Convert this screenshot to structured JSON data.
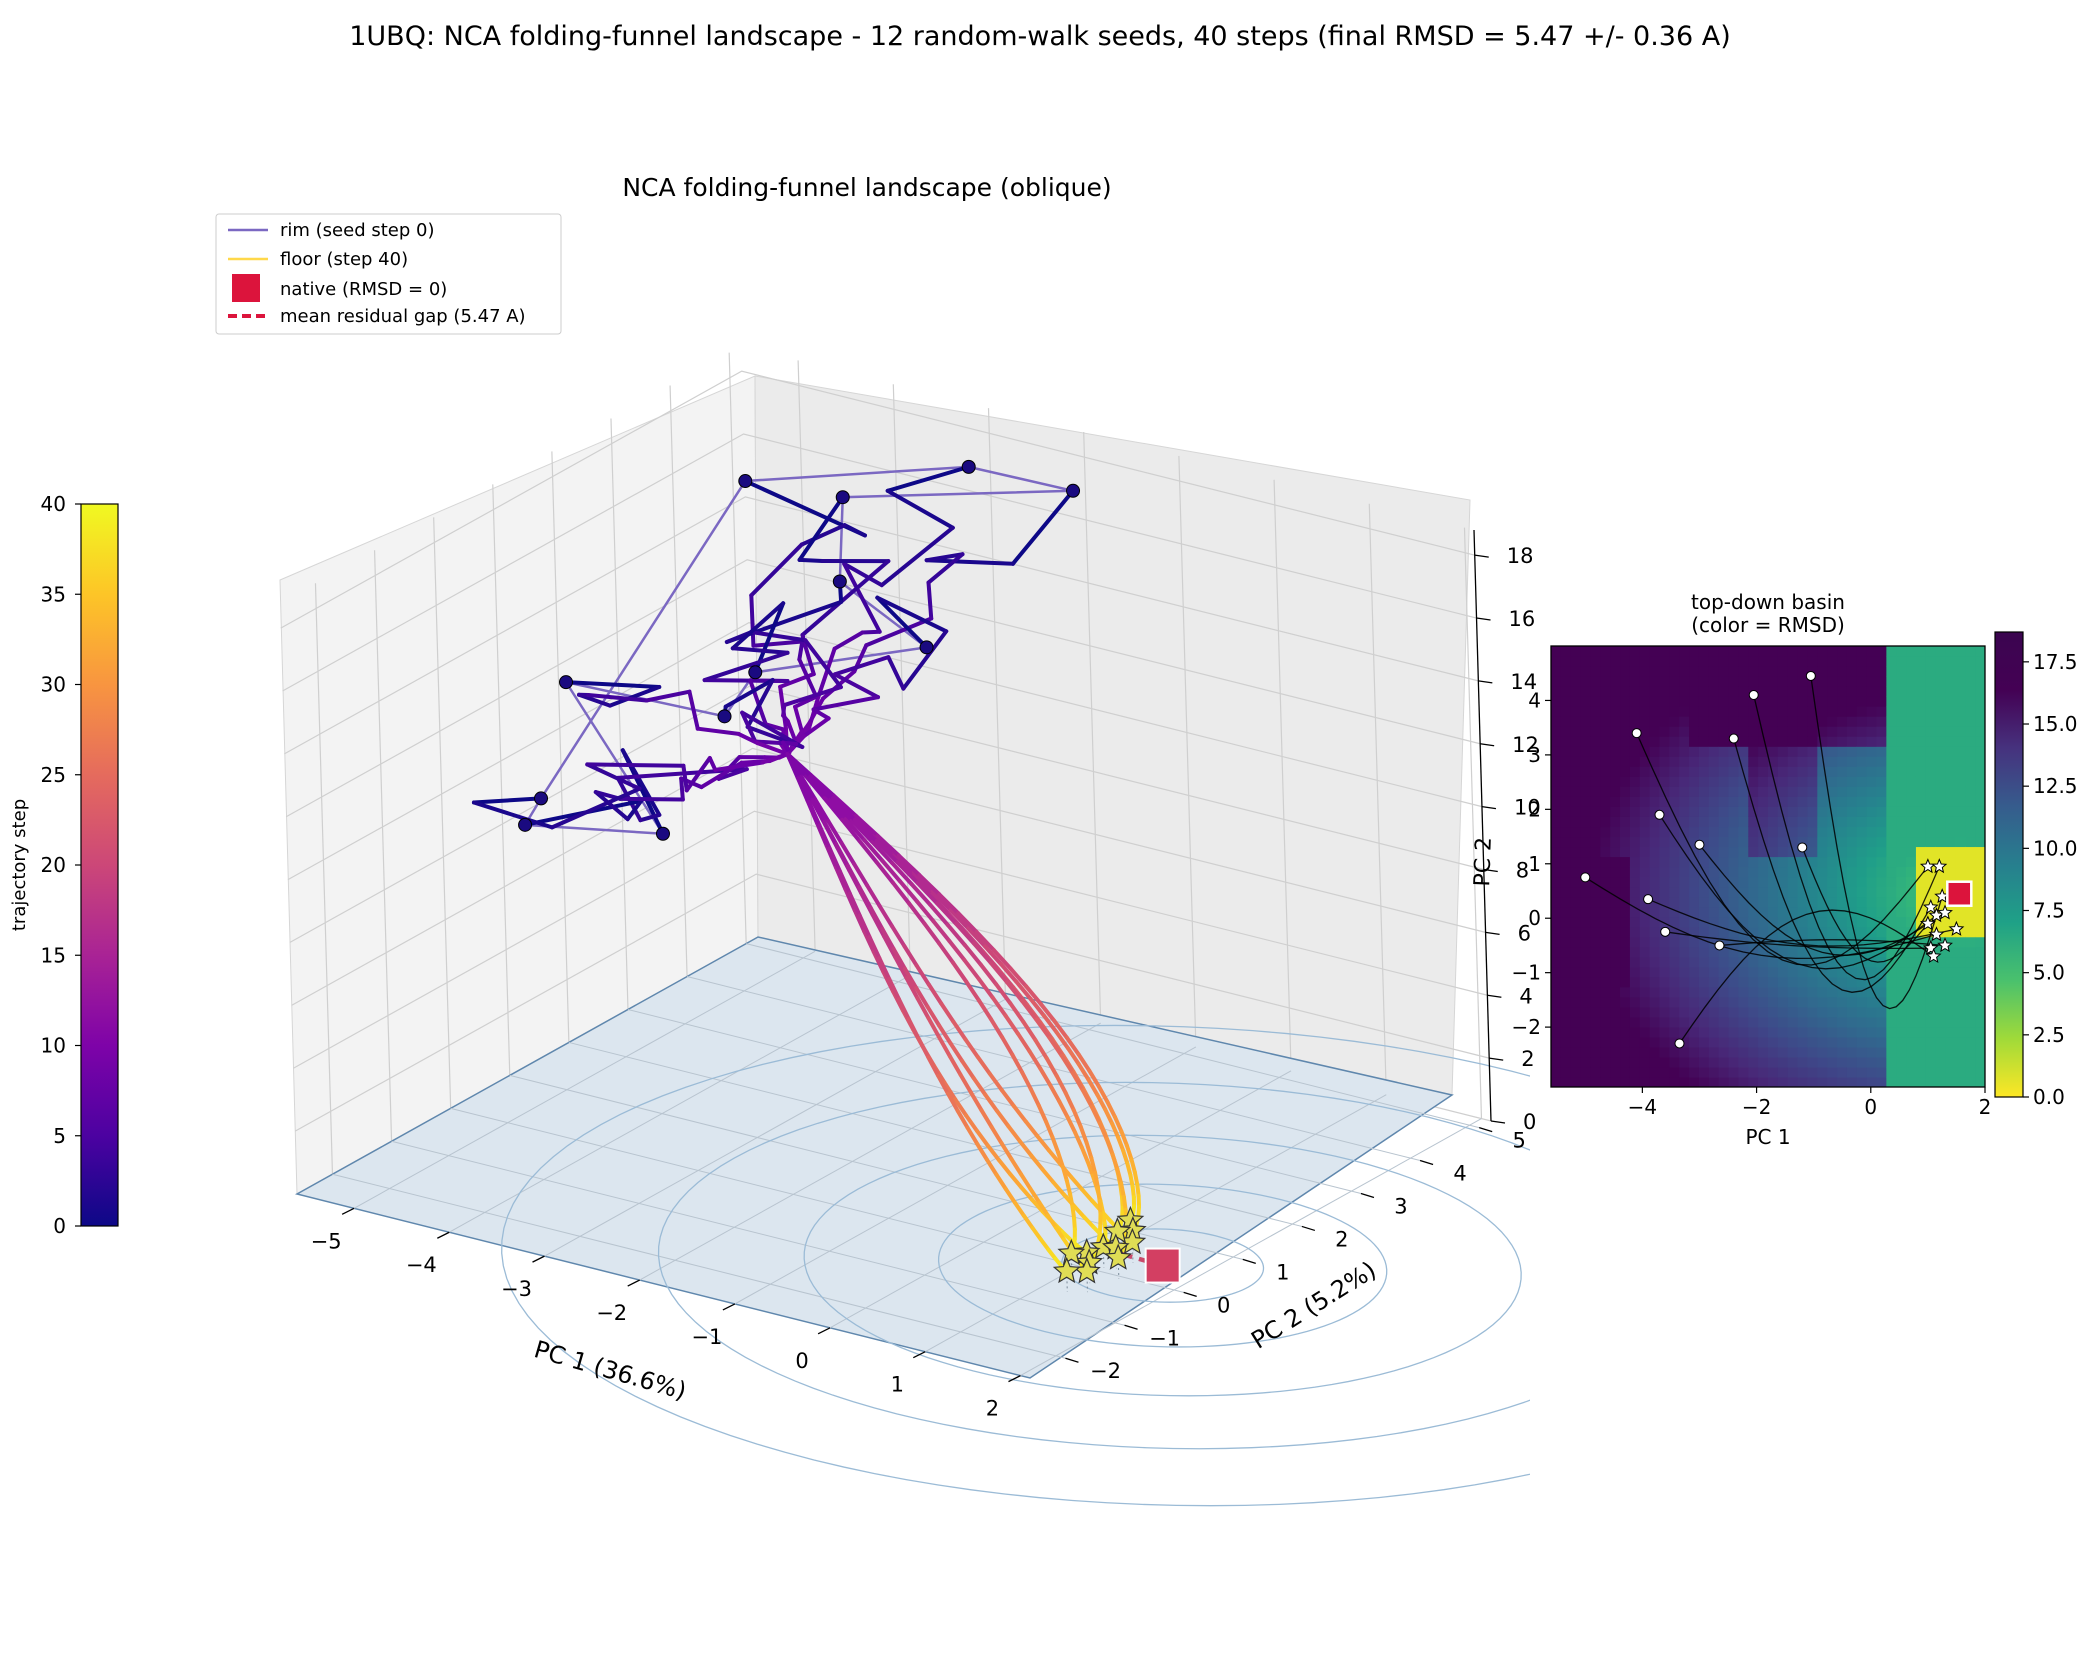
{
  "figure": {
    "suptitle": "1UBQ: NCA folding-funnel landscape  -  12 random-walk seeds, 40 steps   (final RMSD = 5.47 +/- 0.36 A)"
  },
  "colors": {
    "rim": "#7b68c2",
    "floor": "#ffd84a",
    "native": "#dc143c",
    "gap_line": "#c84a6a",
    "contours": "#9bbbd6",
    "floor_plane": "#dce6ef",
    "marker_seed": "#1a0a80",
    "star_fill": "#e0dd55"
  },
  "chart_data": [
    {
      "type": "line",
      "subtype": "3d-trajectories",
      "title": "NCA folding-funnel landscape (oblique)",
      "xlabel": "PC 1 (36.6%)",
      "ylabel": "PC 2 (5.2%)",
      "zlabel": "PC 2",
      "xlim": [
        -5.6,
        2.1
      ],
      "ylim": [
        -2.6,
        5.2
      ],
      "zlim": [
        0,
        18.8
      ],
      "xticks": [
        -5,
        -4,
        -3,
        -2,
        -1,
        0,
        1,
        2
      ],
      "yticks": [
        -2,
        -1,
        0,
        1,
        2,
        3,
        4,
        5
      ],
      "zticks": [
        0,
        2,
        4,
        6,
        8,
        10,
        12,
        14,
        16,
        18
      ],
      "grid": true,
      "legend_placement": "top-left",
      "legend": [
        {
          "label": "rim (seed step 0)",
          "kind": "line",
          "color": "#7b68c2"
        },
        {
          "label": "floor (step 40)",
          "kind": "line",
          "color": "#ffd84a"
        },
        {
          "label": "native (RMSD = 0)",
          "kind": "square",
          "color": "#dc143c"
        },
        {
          "label": "mean residual gap (5.47 A)",
          "kind": "dashed",
          "color": "#dc143c"
        }
      ],
      "colorbar": {
        "label": "trajectory step",
        "colormap": "plasma",
        "range": [
          0,
          40
        ],
        "ticks": [
          0,
          5,
          10,
          15,
          20,
          25,
          30,
          35,
          40
        ]
      },
      "native": {
        "x": 1.6,
        "y": 0.45,
        "z": 0
      },
      "contour_center": {
        "x": 1.6,
        "y": 0.45
      },
      "series": [
        {
          "seed": [
            -4.1,
            3.4,
            17.5
          ],
          "end": [
            1.05,
            0.8,
            0.65
          ],
          "wave": 0.9
        },
        {
          "seed": [
            -3.0,
            4.5,
            17.8
          ],
          "end": [
            1.2,
            0.6,
            0.65
          ],
          "wave": 1.1
        },
        {
          "seed": [
            -2.6,
            4.7,
            17.3
          ],
          "end": [
            1.35,
            0.35,
            0.65
          ],
          "wave": -0.9
        },
        {
          "seed": [
            -3.5,
            3.9,
            16.2
          ],
          "end": [
            1.2,
            0.1,
            0.65
          ],
          "wave": 0.7
        },
        {
          "seed": [
            -3.3,
            2.6,
            15.2
          ],
          "end": [
            1.15,
            -0.1,
            0.65
          ],
          "wave": -1.2
        },
        {
          "seed": [
            -2.4,
            3.3,
            14.9
          ],
          "end": [
            1.3,
            -0.3,
            0.65
          ],
          "wave": 1.3
        },
        {
          "seed": [
            -3.9,
            1.9,
            14.6
          ],
          "end": [
            1.4,
            -0.5,
            0.65
          ],
          "wave": -0.6
        },
        {
          "seed": [
            -2.7,
            1.1,
            13.9
          ],
          "end": [
            1.1,
            0.5,
            0.65
          ],
          "wave": 1.0
        },
        {
          "seed": [
            -5.0,
            1.2,
            13.3
          ],
          "end": [
            1.3,
            0.15,
            0.65
          ],
          "wave": -1.0
        },
        {
          "seed": [
            -3.7,
            -0.2,
            11.1
          ],
          "end": [
            1.05,
            -0.2,
            0.65
          ],
          "wave": 0.8
        },
        {
          "seed": [
            -3.3,
            -1.5,
            12.0
          ],
          "end": [
            1.25,
            -0.6,
            0.65
          ],
          "wave": -0.8
        },
        {
          "seed": [
            -4.9,
            0.4,
            9.8
          ],
          "end": [
            1.45,
            -0.05,
            0.65
          ],
          "wave": 1.2
        }
      ]
    },
    {
      "type": "heatmap",
      "title": "top-down basin\n(color = RMSD)",
      "xlabel": "PC 1",
      "xlim": [
        -5.6,
        2.0
      ],
      "ylim": [
        -3.1,
        5.0
      ],
      "xticks": [
        -4,
        -2,
        0,
        2
      ],
      "yticks": [
        -2,
        -1,
        0,
        1,
        2,
        3,
        4
      ],
      "colorbar": {
        "colormap": "viridis_r",
        "range": [
          0,
          18.7
        ],
        "ticks": [
          "0.0",
          "2.5",
          "5.0",
          "7.5",
          "10.0",
          "12.5",
          "15.0",
          "17.5"
        ]
      },
      "native": {
        "x": 1.55,
        "y": 0.45
      },
      "seeds": [
        [
          -4.1,
          3.4
        ],
        [
          -2.05,
          4.1
        ],
        [
          -1.05,
          4.45
        ],
        [
          -2.4,
          3.3
        ],
        [
          -3.7,
          1.9
        ],
        [
          -3.0,
          1.35
        ],
        [
          -1.2,
          1.3
        ],
        [
          -5.0,
          0.75
        ],
        [
          -3.9,
          0.35
        ],
        [
          -3.6,
          -0.25
        ],
        [
          -2.65,
          -0.5
        ],
        [
          -3.35,
          -2.3
        ]
      ],
      "ends": [
        [
          1.0,
          0.95
        ],
        [
          1.2,
          0.95
        ],
        [
          1.25,
          0.4
        ],
        [
          1.05,
          0.2
        ],
        [
          1.15,
          0.05
        ],
        [
          1.3,
          0.1
        ],
        [
          1.0,
          -0.1
        ],
        [
          1.15,
          -0.3
        ],
        [
          1.5,
          -0.2
        ],
        [
          1.05,
          -0.55
        ],
        [
          1.3,
          -0.5
        ],
        [
          1.1,
          -0.7
        ]
      ]
    }
  ]
}
